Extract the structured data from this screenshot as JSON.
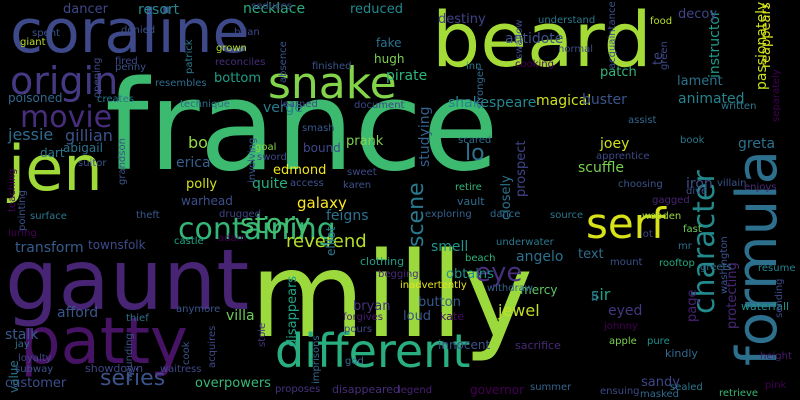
{
  "word_cloud": {
    "background": "#000000",
    "words": [
      {
        "text": "france",
        "color": "#3cba6f"
      },
      {
        "text": "milly",
        "color": "#9bd93c"
      },
      {
        "text": "beard",
        "color": "#a5db36"
      },
      {
        "text": "gaunt",
        "color": "#482475"
      },
      {
        "text": "formula",
        "color": "#2d708e"
      },
      {
        "text": "patty",
        "color": "#471365"
      },
      {
        "text": "coraline",
        "color": "#3e4989"
      },
      {
        "text": "jen",
        "color": "#a0da39"
      },
      {
        "text": "different",
        "color": "#29af7f"
      },
      {
        "text": "snake",
        "color": "#84d44b"
      },
      {
        "text": "serf",
        "color": "#d8e219"
      },
      {
        "text": "origin",
        "color": "#443a83"
      },
      {
        "text": "containing",
        "color": "#34b679"
      },
      {
        "text": "character",
        "color": "#238a8d"
      },
      {
        "text": "movie",
        "color": "#472d7b"
      },
      {
        "text": "story",
        "color": "#44bf70"
      },
      {
        "text": "eye",
        "color": "#472f7d"
      },
      {
        "text": "series",
        "color": "#3b528b"
      },
      {
        "text": "scene",
        "color": "#2a788e"
      },
      {
        "text": "lo",
        "color": "#2d718e"
      },
      {
        "text": "reverend",
        "color": "#b5de2b"
      },
      {
        "text": "passionately",
        "color": "#cae11f"
      },
      {
        "text": "instructor",
        "color": "#1e9b8a"
      },
      {
        "text": "reappears",
        "color": "#dde318"
      },
      {
        "text": "gillian",
        "color": "#3b528b"
      },
      {
        "text": "jessie",
        "color": "#2f6c8e"
      },
      {
        "text": "poisoned",
        "color": "#31688e"
      },
      {
        "text": "shakespeare",
        "color": "#25858e"
      },
      {
        "text": "magical",
        "color": "#cde11d"
      },
      {
        "text": "buster",
        "color": "#3a548c"
      },
      {
        "text": "animated",
        "color": "#26828e"
      },
      {
        "text": "antidote",
        "color": "#3b528b"
      },
      {
        "text": "destiny",
        "color": "#404387"
      },
      {
        "text": "decoy",
        "color": "#414487"
      },
      {
        "text": "patch",
        "color": "#31b57b"
      },
      {
        "text": "pirate",
        "color": "#2fb47c"
      },
      {
        "text": "reduced",
        "color": "#23898e"
      },
      {
        "text": "necklace",
        "color": "#27ad81"
      },
      {
        "text": "resort",
        "color": "#24878e"
      },
      {
        "text": "dancer",
        "color": "#3f4788"
      },
      {
        "text": "fake",
        "color": "#2c728e"
      },
      {
        "text": "hugh",
        "color": "#7ad151"
      },
      {
        "text": "verge",
        "color": "#287d8e"
      },
      {
        "text": "bottom",
        "color": "#1f9e89"
      },
      {
        "text": "te",
        "color": "#3e4989"
      },
      {
        "text": "lament",
        "color": "#2c738e"
      },
      {
        "text": "bo",
        "color": "#95d840"
      },
      {
        "text": "erica",
        "color": "#35608d"
      },
      {
        "text": "polly",
        "color": "#d2e21b"
      },
      {
        "text": "edmond",
        "color": "#f1e51d"
      },
      {
        "text": "quite",
        "color": "#29af7f"
      },
      {
        "text": "bound",
        "color": "#3f4889"
      },
      {
        "text": "prank",
        "color": "#81d34d"
      },
      {
        "text": "studying",
        "color": "#34618d"
      },
      {
        "text": "joey",
        "color": "#d0e11c"
      },
      {
        "text": "scuffle",
        "color": "#7ad151"
      },
      {
        "text": "iron",
        "color": "#3c508b"
      },
      {
        "text": "greta",
        "color": "#2d718e"
      },
      {
        "text": "sir",
        "color": "#1fa188"
      },
      {
        "text": "dart",
        "color": "#2a788e"
      },
      {
        "text": "abigail",
        "color": "#2c738e"
      },
      {
        "text": "galaxy",
        "color": "#fde725"
      },
      {
        "text": "warhead",
        "color": "#3c4f8a"
      },
      {
        "text": "feigns",
        "color": "#2c728e"
      },
      {
        "text": "transform",
        "color": "#365d8d"
      },
      {
        "text": "townsfolk",
        "color": "#3e4a89"
      },
      {
        "text": "smell",
        "color": "#1f958b"
      },
      {
        "text": "obtains",
        "color": "#20928c"
      },
      {
        "text": "angelo",
        "color": "#2d708e"
      },
      {
        "text": "closely",
        "color": "#2c728e"
      },
      {
        "text": "prospect",
        "color": "#414487"
      },
      {
        "text": "text",
        "color": "#2f6c8e"
      },
      {
        "text": "li",
        "color": "#33638d"
      },
      {
        "text": "eyed",
        "color": "#453781"
      },
      {
        "text": "afford",
        "color": "#39568c"
      },
      {
        "text": "stalk",
        "color": "#38598c"
      },
      {
        "text": "villa",
        "color": "#6ccd5a"
      },
      {
        "text": "button",
        "color": "#365c8d"
      },
      {
        "text": "loud",
        "color": "#3a548c"
      },
      {
        "text": "jewel",
        "color": "#c2df23"
      },
      {
        "text": "mercy",
        "color": "#5cc863"
      },
      {
        "text": "overpowers",
        "color": "#37b878"
      },
      {
        "text": "sandy",
        "color": "#3f4788"
      },
      {
        "text": "customer",
        "color": "#3d4e8a"
      },
      {
        "text": "value",
        "color": "#2b748e"
      },
      {
        "text": "showdown",
        "color": "#3f4788"
      },
      {
        "text": "protecting",
        "color": "#482979"
      },
      {
        "text": "page",
        "color": "#482173"
      },
      {
        "text": "apple",
        "color": "#7ad151"
      },
      {
        "text": "innocent",
        "color": "#3b528b"
      },
      {
        "text": "sacrifice",
        "color": "#472a7a"
      },
      {
        "text": "clothing",
        "color": "#1fa088"
      },
      {
        "text": "elliot",
        "color": "#2a788e"
      },
      {
        "text": "disappears",
        "color": "#20a486"
      },
      {
        "text": "bryan",
        "color": "#46337f"
      },
      {
        "text": "kate",
        "color": "#460a5d"
      },
      {
        "text": "kindly",
        "color": "#2f6b8e"
      },
      {
        "text": "pink",
        "color": "#440154"
      },
      {
        "text": "waterfall",
        "color": "#21918c"
      },
      {
        "text": "height",
        "color": "#481c6e"
      },
      {
        "text": "sealed",
        "color": "#2a788e"
      },
      {
        "text": "retrieve",
        "color": "#38b977"
      },
      {
        "text": "ensuing",
        "color": "#3e4989"
      },
      {
        "text": "summer",
        "color": "#33638d"
      },
      {
        "text": "governor",
        "color": "#440154"
      },
      {
        "text": "legend",
        "color": "#482173"
      },
      {
        "text": "disappeared",
        "color": "#472d7b"
      },
      {
        "text": "masked",
        "color": "#2f6b8e"
      },
      {
        "text": "god",
        "color": "#2f6c8e"
      },
      {
        "text": "proposes",
        "color": "#46337f"
      },
      {
        "text": "waitress",
        "color": "#3f4889"
      },
      {
        "text": "cook",
        "color": "#3b528b"
      },
      {
        "text": "thief",
        "color": "#2c728e"
      },
      {
        "text": "subway",
        "color": "#3b528b"
      },
      {
        "text": "loyalty",
        "color": "#3f4788"
      },
      {
        "text": "jay",
        "color": "#2f6c8e"
      },
      {
        "text": "johnny",
        "color": "#440154"
      },
      {
        "text": "pure",
        "color": "#20928c"
      },
      {
        "text": "anymore",
        "color": "#3a548c"
      },
      {
        "text": "acquires",
        "color": "#3e4a89"
      },
      {
        "text": "wounding",
        "color": "#3b528b"
      },
      {
        "text": "stole",
        "color": "#46327e"
      },
      {
        "text": "imprisons",
        "color": "#31688e"
      },
      {
        "text": "forgives",
        "color": "#481c6e"
      },
      {
        "text": "pours",
        "color": "#3e4989"
      },
      {
        "text": "inadvertently",
        "color": "#e5e419"
      },
      {
        "text": "begging",
        "color": "#482979"
      },
      {
        "text": "withdraw",
        "color": "#33638d"
      },
      {
        "text": "underwater",
        "color": "#2a788e"
      },
      {
        "text": "beach",
        "color": "#2fb47c"
      },
      {
        "text": "mount",
        "color": "#3b528b"
      },
      {
        "text": "rooftop",
        "color": "#25ab82"
      },
      {
        "text": "greets",
        "color": "#2d708e"
      },
      {
        "text": "sending",
        "color": "#3e4989"
      },
      {
        "text": "resume",
        "color": "#25848e"
      },
      {
        "text": "washington",
        "color": "#3b528b"
      },
      {
        "text": "mr",
        "color": "#2e6f8e"
      },
      {
        "text": "lot",
        "color": "#3e4989"
      },
      {
        "text": "fast",
        "color": "#6ccd5a"
      },
      {
        "text": "wooden",
        "color": "#a2da37"
      },
      {
        "text": "source",
        "color": "#2a788e"
      },
      {
        "text": "gagged",
        "color": "#482475"
      },
      {
        "text": "dance",
        "color": "#2f6c8e"
      },
      {
        "text": "exploring",
        "color": "#34618d"
      },
      {
        "text": "vault",
        "color": "#2f6c8e"
      },
      {
        "text": "retire",
        "color": "#2fb47c"
      },
      {
        "text": "karen",
        "color": "#3b528b"
      },
      {
        "text": "sweet",
        "color": "#3e4989"
      },
      {
        "text": "access",
        "color": "#3b528b"
      },
      {
        "text": "sword",
        "color": "#3e4989"
      },
      {
        "text": "goal",
        "color": "#8bd646"
      },
      {
        "text": "involving",
        "color": "#38598c"
      },
      {
        "text": "smash",
        "color": "#38598c"
      },
      {
        "text": "drugged",
        "color": "#414487"
      },
      {
        "text": "theft",
        "color": "#38598c"
      },
      {
        "text": "surface",
        "color": "#2a788e"
      },
      {
        "text": "luring",
        "color": "#440154"
      },
      {
        "text": "castle",
        "color": "#20a486"
      },
      {
        "text": "adam",
        "color": "#440154"
      },
      {
        "text": "teaching",
        "color": "#440154"
      },
      {
        "text": "pointing",
        "color": "#3b528b"
      },
      {
        "text": "suitor",
        "color": "#3b528b"
      },
      {
        "text": "grandson",
        "color": "#3b528b"
      },
      {
        "text": "scared",
        "color": "#2f6c8e"
      },
      {
        "text": "apprentice",
        "color": "#3e4989"
      },
      {
        "text": "choosing",
        "color": "#3b528b"
      },
      {
        "text": "book",
        "color": "#2a788e"
      },
      {
        "text": "villain",
        "color": "#3b528b"
      },
      {
        "text": "dive",
        "color": "#3b528b"
      },
      {
        "text": "enjoys",
        "color": "#472d7b"
      },
      {
        "text": "assist",
        "color": "#31688e"
      },
      {
        "text": "written",
        "color": "#2a788e"
      },
      {
        "text": "separately",
        "color": "#440154"
      },
      {
        "text": "technique",
        "color": "#2f6c8e"
      },
      {
        "text": "learned",
        "color": "#3e4989"
      },
      {
        "text": "document",
        "color": "#3e4989"
      },
      {
        "text": "creates",
        "color": "#2a788e"
      },
      {
        "text": "resembles",
        "color": "#2f6c8e"
      },
      {
        "text": "reconciles",
        "color": "#472d7b"
      },
      {
        "text": "finished",
        "color": "#3b528b"
      },
      {
        "text": "absence",
        "color": "#3b528b"
      },
      {
        "text": "opening",
        "color": "#3e4989"
      },
      {
        "text": "fired",
        "color": "#3e4989"
      },
      {
        "text": "penny",
        "color": "#3b528b"
      },
      {
        "text": "denied",
        "color": "#3b528b"
      },
      {
        "text": "patrick",
        "color": "#2a788e"
      },
      {
        "text": "brian",
        "color": "#3e4989"
      },
      {
        "text": "grown",
        "color": "#b5de2b"
      },
      {
        "text": "seduces",
        "color": "#3e4989"
      },
      {
        "text": "spent",
        "color": "#3b528b"
      },
      {
        "text": "giant",
        "color": "#bddf26"
      },
      {
        "text": "inn",
        "color": "#2a788e"
      },
      {
        "text": "stronger",
        "color": "#31688e"
      },
      {
        "text": "cooking",
        "color": "#440154"
      },
      {
        "text": "swallow",
        "color": "#3e4989"
      },
      {
        "text": "understand",
        "color": "#2a788e"
      },
      {
        "text": "normal",
        "color": "#3e4989"
      },
      {
        "text": "acquaintance",
        "color": "#3b528b"
      },
      {
        "text": "food",
        "color": "#b5de2b"
      },
      {
        "text": "green",
        "color": "#3e4989"
      }
    ]
  }
}
